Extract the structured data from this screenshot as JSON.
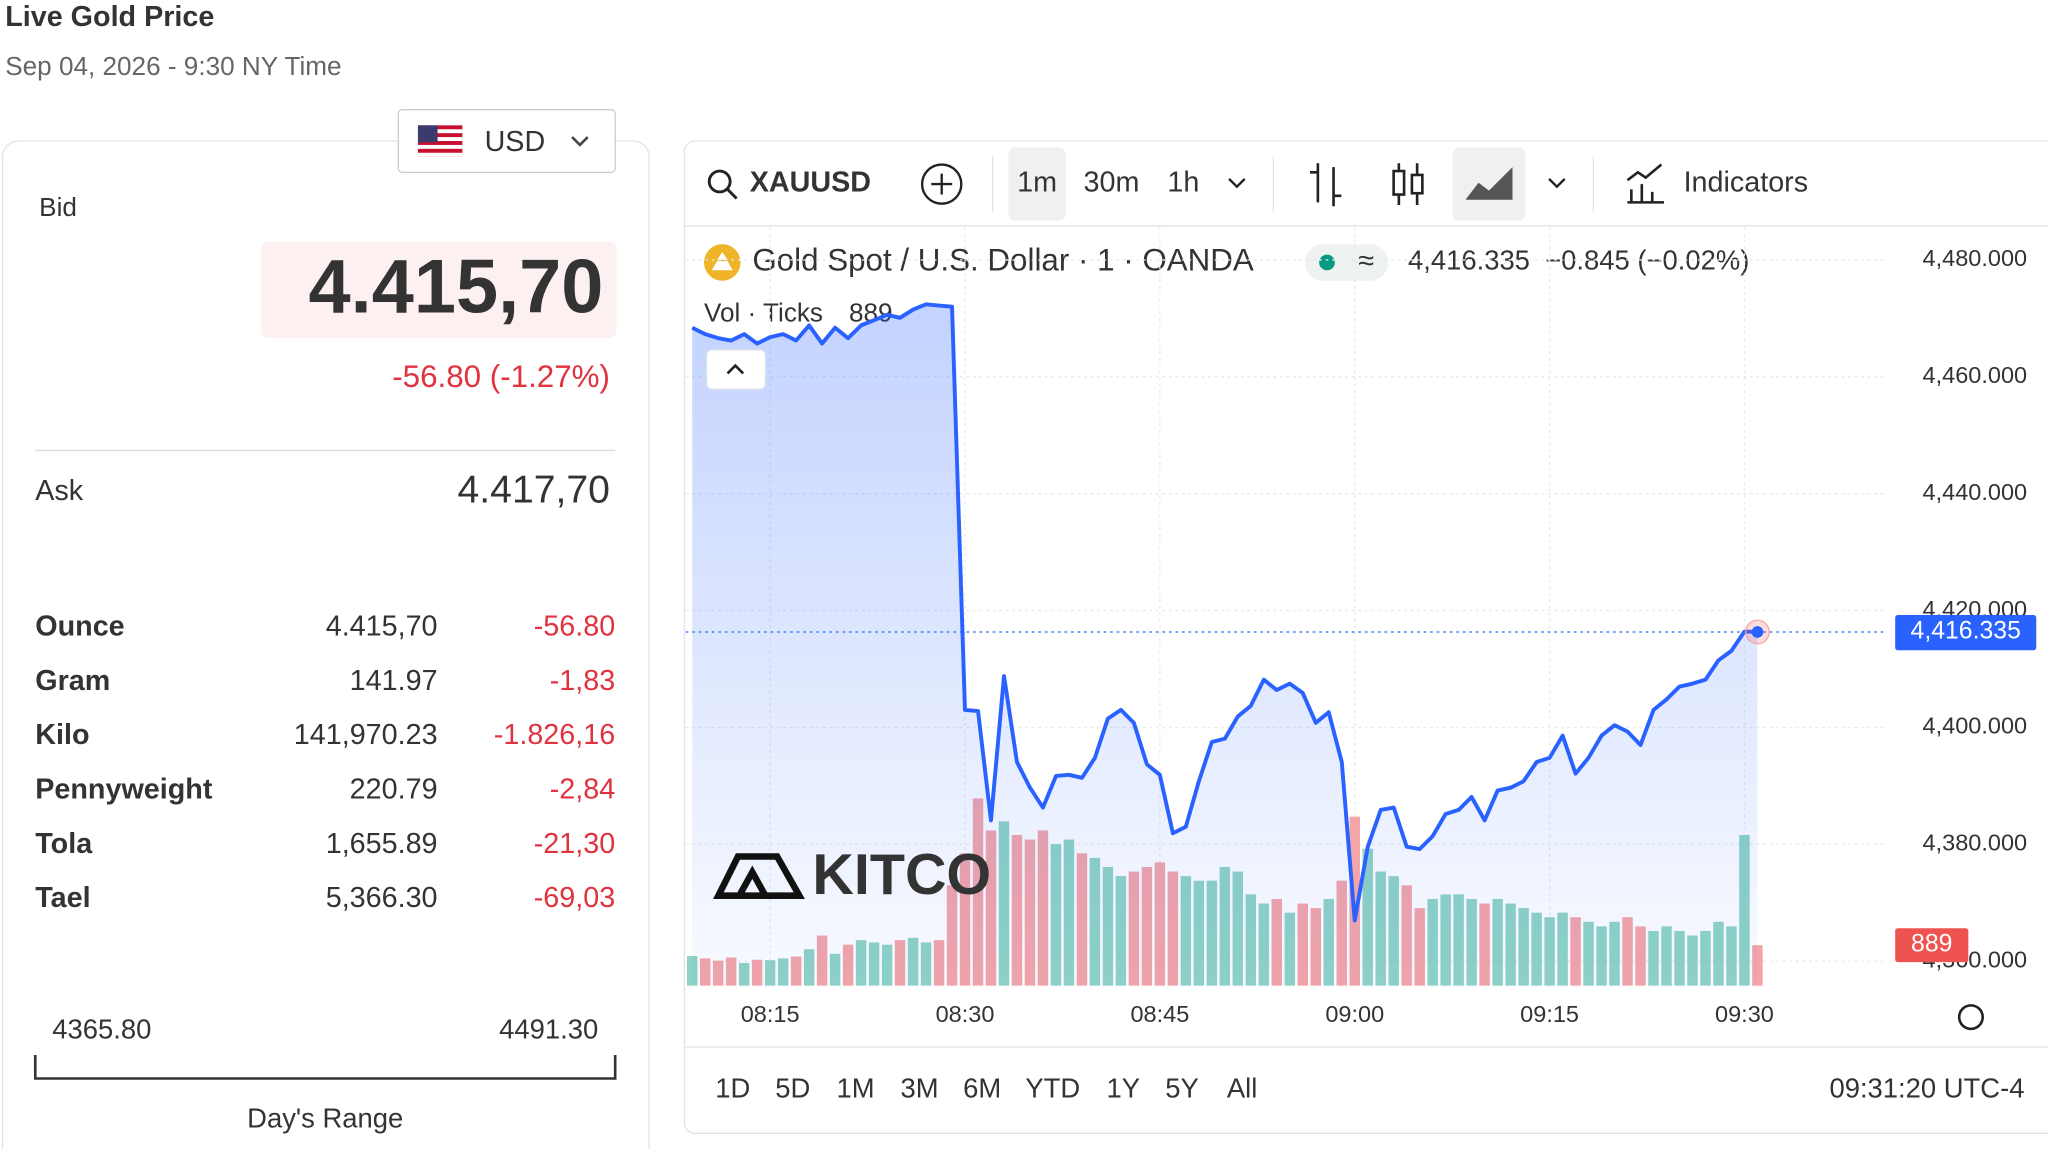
{
  "header": {
    "title": "Live Gold Price",
    "timestamp": "Sep 04, 2026 - 9:30 NY Time",
    "currency": "USD"
  },
  "quote": {
    "bid_label": "Bid",
    "bid": "4.415,70",
    "change": "-56.80 (-1.27%)",
    "ask_label": "Ask",
    "ask": "4.417,70",
    "rows": [
      [
        "Ounce",
        "4.415,70",
        "-56.80"
      ],
      [
        "Gram",
        "141.97",
        "-1,83"
      ],
      [
        "Kilo",
        "141,970.23",
        "-1.826,16"
      ],
      [
        "Pennyweight",
        "220.79",
        "-2,84"
      ],
      [
        "Tola",
        "1,655.89",
        "-21,30"
      ],
      [
        "Tael",
        "5,366.30",
        "-69,03"
      ]
    ],
    "range": {
      "low": "4365.80",
      "high": "4491.30",
      "label": "Day's Range"
    }
  },
  "toolbar": {
    "symbol": "XAUUSD",
    "intervals": [
      "1m",
      "30m",
      "1h"
    ],
    "indicators": "Indicators"
  },
  "chart_data": {
    "type": "line",
    "title": "Gold Spot / U.S. Dollar · 1 · OANDA",
    "last_label": "4,416.335",
    "change_label": "−0.845 (−0.02%)",
    "volume_title": "Vol · Ticks",
    "watermark": "KITCO",
    "x": [
      489,
      490,
      491,
      492,
      493,
      494,
      495,
      496,
      497,
      498,
      499,
      500,
      501,
      502,
      503,
      504,
      505,
      506,
      507,
      508,
      509,
      510,
      511,
      512,
      513,
      514,
      515,
      516,
      517,
      518,
      519,
      520,
      521,
      522,
      523,
      524,
      525,
      526,
      527,
      528,
      529,
      530,
      531,
      532,
      533,
      534,
      535,
      536,
      537,
      538,
      539,
      540,
      541,
      542,
      543,
      544,
      545,
      546,
      547,
      548,
      549,
      550,
      551,
      552,
      553,
      554,
      555,
      556,
      557,
      558,
      559,
      560,
      561,
      562,
      563,
      564,
      565,
      566,
      567,
      568,
      569,
      570,
      571
    ],
    "values": [
      4468.4,
      4467.3,
      4466.6,
      4466.2,
      4467.3,
      4465.7,
      4466.8,
      4467.3,
      4466.2,
      4468.8,
      4465.7,
      4468.4,
      4466.6,
      4468.8,
      4469.7,
      4470.6,
      4470.1,
      4471.5,
      4472.4,
      4472.2,
      4472,
      4403,
      4402.8,
      4384.1,
      4408.8,
      4394.1,
      4389.7,
      4386.3,
      4391.7,
      4391.9,
      4391.4,
      4394.8,
      4401.5,
      4403,
      4400.8,
      4393.7,
      4391.9,
      4381.9,
      4383,
      4390.8,
      4397.5,
      4398.1,
      4401.9,
      4403.7,
      4408.2,
      4406.4,
      4407.5,
      4405.9,
      4400.8,
      4402.6,
      4394.1,
      4367,
      4379.6,
      4385.9,
      4386.3,
      4379.6,
      4379.2,
      4381.4,
      4385.2,
      4385.9,
      4388.1,
      4384.1,
      4389.2,
      4389.7,
      4390.8,
      4394.1,
      4394.8,
      4398.6,
      4392.1,
      4394.8,
      4398.6,
      4400.4,
      4399.3,
      4397,
      4403,
      4404.8,
      4407,
      4407.5,
      4408.2,
      4411.5,
      4413.1,
      4416.4,
      4416.335
    ],
    "volume": [
      650,
      600,
      550,
      620,
      500,
      570,
      560,
      600,
      640,
      800,
      1100,
      700,
      900,
      1000,
      950,
      900,
      1000,
      1050,
      950,
      1000,
      2200,
      2900,
      4100,
      3400,
      3600,
      3300,
      3200,
      3400,
      3100,
      3200,
      2900,
      2800,
      2600,
      2400,
      2500,
      2600,
      2700,
      2500,
      2400,
      2300,
      2300,
      2600,
      2500,
      2000,
      1800,
      1900,
      1600,
      1800,
      1700,
      1900,
      2300,
      3700,
      3000,
      2500,
      2400,
      2200,
      1700,
      1900,
      2000,
      2000,
      1900,
      1800,
      1900,
      1800,
      1700,
      1600,
      1500,
      1600,
      1500,
      1400,
      1300,
      1400,
      1500,
      1300,
      1200,
      1300,
      1200,
      1100,
      1200,
      1400,
      1300,
      3300,
      889
    ],
    "volume_ylim": [
      0,
      5000
    ],
    "xlim": [
      488.5,
      581
    ],
    "xticks": [
      {
        "value": 495,
        "label": "08:15"
      },
      {
        "value": 510,
        "label": "08:30"
      },
      {
        "value": 525,
        "label": "08:45"
      },
      {
        "value": 540,
        "label": "09:00"
      },
      {
        "value": 555,
        "label": "09:15"
      },
      {
        "value": 570,
        "label": "09:30"
      }
    ],
    "ylim": [
      4355.8,
      4485.6
    ],
    "yticks": [
      {
        "value": 4480,
        "label": "4,480.000"
      },
      {
        "value": 4460,
        "label": "4,460.000"
      },
      {
        "value": 4440,
        "label": "4,440.000"
      },
      {
        "value": 4420,
        "label": "4,420.000"
      },
      {
        "value": 4400,
        "label": "4,400.000"
      },
      {
        "value": 4380,
        "label": "4,380.000"
      },
      {
        "value": 4360,
        "label": "4,360.000"
      }
    ],
    "line_color": "#2962ff",
    "up_color": "#8fd3c5",
    "down_color": "#f4a5a8",
    "grid": true
  },
  "ranges": {
    "buttons": [
      "1D",
      "5D",
      "1M",
      "3M",
      "6M",
      "YTD",
      "1Y",
      "5Y",
      "All"
    ],
    "clock": "09:31:20 UTC-4"
  }
}
